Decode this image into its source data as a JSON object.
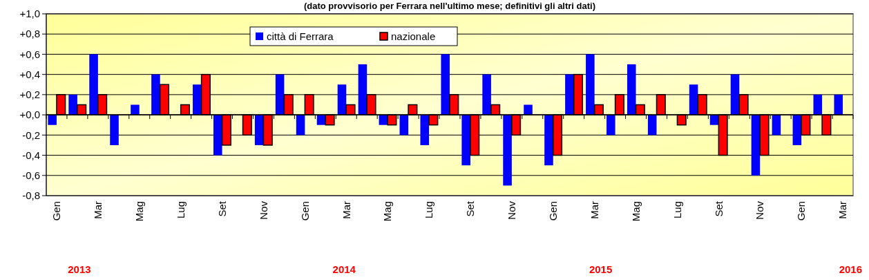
{
  "chart_data": {
    "type": "bar",
    "subtitle": "(dato provvisorio per Ferrara nell'ultimo mese; definitivi gli altri dati)",
    "categories": [
      "Gen",
      null,
      "Mar",
      null,
      "Mag",
      null,
      "Lug",
      null,
      "Set",
      null,
      "Nov",
      null,
      "Gen",
      null,
      "Mar",
      null,
      "Mag",
      null,
      "Lug",
      null,
      "Set",
      null,
      "Nov",
      null,
      "Gen",
      null,
      "Mar",
      null,
      "Mag",
      null,
      "Lug",
      null,
      "Set",
      null,
      "Nov",
      null,
      "Gen",
      null,
      "Mar"
    ],
    "series": [
      {
        "name": "città di Ferrara",
        "color": "#0000ff",
        "values": [
          -0.1,
          0.2,
          0.6,
          -0.3,
          0.1,
          0.4,
          0,
          0.3,
          -0.4,
          0,
          -0.3,
          0.4,
          -0.2,
          -0.1,
          0.3,
          0.5,
          -0.1,
          -0.2,
          -0.3,
          0.6,
          -0.5,
          0.4,
          -0.7,
          0.1,
          -0.5,
          0.4,
          0.6,
          -0.2,
          0.5,
          -0.2,
          0,
          0.3,
          -0.1,
          0.4,
          -0.6,
          -0.2,
          -0.3,
          0.2,
          0.2
        ]
      },
      {
        "name": "nazionale",
        "color": "#ff0000",
        "values": [
          0.2,
          0.1,
          0.2,
          0,
          0,
          0.3,
          0.1,
          0.4,
          -0.3,
          -0.2,
          -0.3,
          0.2,
          0.2,
          -0.1,
          0.1,
          0.2,
          -0.1,
          0.1,
          -0.1,
          0.2,
          -0.4,
          0.1,
          -0.2,
          0,
          -0.4,
          0.4,
          0.1,
          0.2,
          0.1,
          0.2,
          -0.1,
          0.2,
          -0.4,
          0.2,
          -0.4,
          0,
          -0.2,
          -0.2,
          null
        ]
      }
    ],
    "ylim": [
      -0.8,
      1.0
    ],
    "yticks": [
      {
        "value": -0.8,
        "label": "-0,8"
      },
      {
        "value": -0.6,
        "label": "-0,6"
      },
      {
        "value": -0.4,
        "label": "-0,4"
      },
      {
        "value": -0.2,
        "label": "-0,2"
      },
      {
        "value": 0,
        "label": "+0,0"
      },
      {
        "value": 0.2,
        "label": "+0,2"
      },
      {
        "value": 0.4,
        "label": "+0,4"
      },
      {
        "value": 0.6,
        "label": "+0,6"
      },
      {
        "value": 0.8,
        "label": "+0,8"
      },
      {
        "value": 1.0,
        "label": "+1,0"
      }
    ],
    "grid": "y",
    "legend": "top",
    "annotations": [
      "2013",
      "2014",
      "2015",
      "2016"
    ]
  }
}
